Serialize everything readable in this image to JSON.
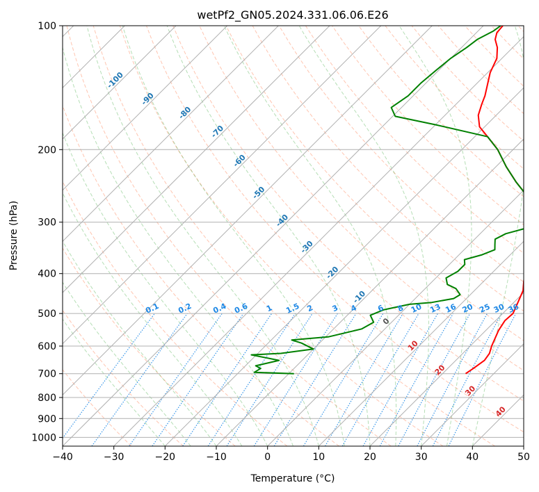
{
  "chart_data": {
    "type": "line",
    "title": "wetPf2_GN05.2024.331.06.06.E26",
    "xlabel": "Temperature (°C)",
    "ylabel": "Pressure (hPa)",
    "xlim": [
      -40,
      50
    ],
    "ylim": [
      1050,
      100
    ],
    "y_scale": "log",
    "x_ticks": [
      "−40",
      "−30",
      "−20",
      "−10",
      "0",
      "10",
      "20",
      "30",
      "40",
      "50"
    ],
    "y_ticks": [
      "100",
      "200",
      "300",
      "400",
      "500",
      "600",
      "700",
      "800",
      "900",
      "1000"
    ],
    "grid": true,
    "skew": true,
    "series": [
      {
        "role": "temperature",
        "color": "#ff0000",
        "points": [
          [
            24.5,
            700
          ],
          [
            25.0,
            680
          ],
          [
            25.6,
            650
          ],
          [
            25.2,
            625
          ],
          [
            24.2,
            600
          ],
          [
            22.5,
            550
          ],
          [
            21.8,
            520
          ],
          [
            22.0,
            500
          ],
          [
            20.8,
            470
          ],
          [
            19.5,
            440
          ],
          [
            18.0,
            420
          ],
          [
            16.5,
            400
          ],
          [
            14.8,
            380
          ],
          [
            13.0,
            360
          ],
          [
            11.5,
            340
          ],
          [
            10.3,
            325
          ],
          [
            10.0,
            310
          ],
          [
            9.8,
            300
          ],
          [
            8.5,
            290
          ],
          [
            6.5,
            280
          ],
          [
            4.5,
            272
          ],
          [
            2.0,
            260
          ],
          [
            -3.0,
            240
          ],
          [
            -8.0,
            220
          ],
          [
            -13.0,
            200
          ],
          [
            -17.5,
            186
          ],
          [
            -21.0,
            176
          ],
          [
            -23.5,
            165
          ],
          [
            -25.0,
            155
          ],
          [
            -26.0,
            148
          ],
          [
            -27.5,
            140
          ],
          [
            -29.5,
            130
          ],
          [
            -31.0,
            120
          ],
          [
            -33.0,
            113
          ],
          [
            -35.0,
            108
          ],
          [
            -36.0,
            104
          ],
          [
            -36.2,
            100
          ]
        ]
      },
      {
        "role": "dewpoint",
        "color": "#008000",
        "points": [
          [
            -9.0,
            700
          ],
          [
            -17.0,
            695
          ],
          [
            -16.5,
            680
          ],
          [
            -18.0,
            670
          ],
          [
            -14.5,
            650
          ],
          [
            -21.0,
            630
          ],
          [
            -15.5,
            625
          ],
          [
            -10.0,
            610
          ],
          [
            -13.5,
            590
          ],
          [
            -16.0,
            580
          ],
          [
            -9.5,
            570
          ],
          [
            -4.5,
            545
          ],
          [
            -3.5,
            525
          ],
          [
            -5.5,
            505
          ],
          [
            -4.0,
            490
          ],
          [
            0.0,
            475
          ],
          [
            4.0,
            470
          ],
          [
            7.5,
            460
          ],
          [
            8.0,
            450
          ],
          [
            6.0,
            435
          ],
          [
            3.5,
            425
          ],
          [
            2.0,
            410
          ],
          [
            3.0,
            395
          ],
          [
            3.0,
            380
          ],
          [
            2.0,
            370
          ],
          [
            4.5,
            360
          ],
          [
            6.0,
            350
          ],
          [
            5.0,
            340
          ],
          [
            4.0,
            330
          ],
          [
            5.0,
            320
          ],
          [
            8.0,
            310
          ],
          [
            11.0,
            300
          ],
          [
            14.0,
            292
          ],
          [
            16.0,
            284
          ],
          [
            16.8,
            278
          ],
          [
            4.5,
            272
          ],
          [
            2.0,
            260
          ],
          [
            -3.0,
            240
          ],
          [
            -8.0,
            220
          ],
          [
            -13.0,
            200
          ],
          [
            -17.5,
            186
          ],
          [
            -30.0,
            174
          ],
          [
            -39.5,
            166
          ],
          [
            -42.0,
            158
          ],
          [
            -41.0,
            148
          ],
          [
            -41.0,
            138
          ],
          [
            -40.5,
            128
          ],
          [
            -40.0,
            120
          ],
          [
            -39.0,
            113
          ],
          [
            -38.5,
            108
          ],
          [
            -37.0,
            103
          ],
          [
            -36.6,
            100
          ]
        ]
      }
    ],
    "isotherm_labels": [
      "-100",
      "-90",
      "-80",
      "-70",
      "-60",
      "-50",
      "-40",
      "-30",
      "-20",
      "-10",
      "0",
      "10",
      "20",
      "30",
      "40"
    ],
    "mixing_ratio_labels": [
      "0.1",
      "0.2",
      "0.4",
      "0.6",
      "1",
      "1.5",
      "2",
      "3",
      "4",
      "6",
      "8",
      "10",
      "13",
      "16",
      "20",
      "25",
      "30",
      "36"
    ],
    "colors": {
      "temperature": "#ff0000",
      "dewpoint": "#008000",
      "isotherm_label_neg": "#1f77b4",
      "isotherm_label_pos": "#d62728",
      "isotherm_label_zero": "#555555",
      "mixing_ratio": "#1e88e5",
      "dry_adiabat": "#ff7f50",
      "moist_adiabat": "#2ca02c",
      "grid": "#b0b0b0"
    }
  }
}
